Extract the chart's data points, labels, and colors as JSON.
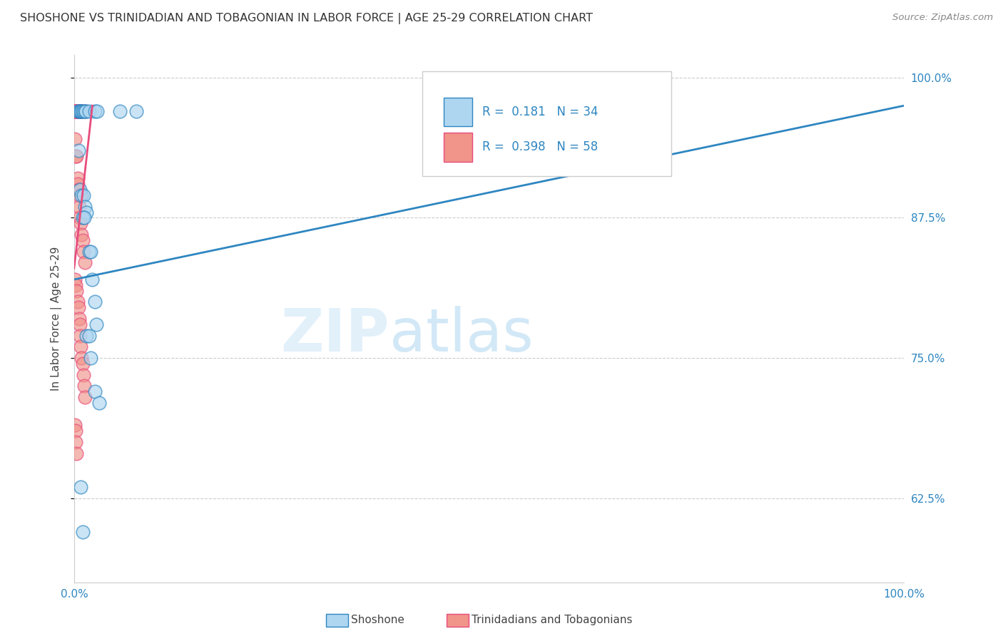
{
  "title": "SHOSHONE VS TRINIDADIAN AND TOBAGONIAN IN LABOR FORCE | AGE 25-29 CORRELATION CHART",
  "source": "Source: ZipAtlas.com",
  "ylabel_left": "In Labor Force | Age 25-29",
  "legend_label1": "Shoshone",
  "legend_label2": "Trinidadians and Tobagonians",
  "R1": "0.181",
  "N1": "34",
  "R2": "0.398",
  "N2": "58",
  "color_blue": "#aed6f1",
  "color_pink": "#f1948a",
  "color_blue_dark": "#2e86c1",
  "color_pink_dark": "#e74c7c",
  "color_text_blue": "#2e86c1",
  "shoshone_points": [
    [
      0.004,
      0.97
    ],
    [
      0.006,
      0.97
    ],
    [
      0.007,
      0.97
    ],
    [
      0.008,
      0.97
    ],
    [
      0.009,
      0.97
    ],
    [
      0.01,
      0.97
    ],
    [
      0.011,
      0.97
    ],
    [
      0.013,
      0.97
    ],
    [
      0.014,
      0.97
    ],
    [
      0.018,
      0.97
    ],
    [
      0.025,
      0.97
    ],
    [
      0.028,
      0.97
    ],
    [
      0.055,
      0.97
    ],
    [
      0.075,
      0.97
    ],
    [
      0.005,
      0.935
    ],
    [
      0.007,
      0.9
    ],
    [
      0.009,
      0.895
    ],
    [
      0.011,
      0.895
    ],
    [
      0.013,
      0.885
    ],
    [
      0.015,
      0.88
    ],
    [
      0.01,
      0.875
    ],
    [
      0.012,
      0.875
    ],
    [
      0.018,
      0.845
    ],
    [
      0.02,
      0.845
    ],
    [
      0.022,
      0.82
    ],
    [
      0.025,
      0.8
    ],
    [
      0.027,
      0.78
    ],
    [
      0.015,
      0.77
    ],
    [
      0.018,
      0.77
    ],
    [
      0.02,
      0.75
    ],
    [
      0.025,
      0.72
    ],
    [
      0.03,
      0.71
    ],
    [
      0.008,
      0.635
    ],
    [
      0.01,
      0.595
    ]
  ],
  "trinidadian_points": [
    [
      0.001,
      0.97
    ],
    [
      0.001,
      0.97
    ],
    [
      0.002,
      0.97
    ],
    [
      0.002,
      0.97
    ],
    [
      0.002,
      0.97
    ],
    [
      0.003,
      0.97
    ],
    [
      0.003,
      0.97
    ],
    [
      0.003,
      0.97
    ],
    [
      0.003,
      0.97
    ],
    [
      0.004,
      0.97
    ],
    [
      0.004,
      0.97
    ],
    [
      0.004,
      0.97
    ],
    [
      0.004,
      0.97
    ],
    [
      0.005,
      0.97
    ],
    [
      0.005,
      0.97
    ],
    [
      0.005,
      0.97
    ],
    [
      0.005,
      0.97
    ],
    [
      0.006,
      0.97
    ],
    [
      0.006,
      0.97
    ],
    [
      0.006,
      0.97
    ],
    [
      0.007,
      0.97
    ],
    [
      0.007,
      0.97
    ],
    [
      0.008,
      0.97
    ],
    [
      0.008,
      0.97
    ],
    [
      0.009,
      0.97
    ],
    [
      0.014,
      0.97
    ],
    [
      0.001,
      0.945
    ],
    [
      0.002,
      0.93
    ],
    [
      0.003,
      0.93
    ],
    [
      0.004,
      0.91
    ],
    [
      0.004,
      0.905
    ],
    [
      0.005,
      0.9
    ],
    [
      0.006,
      0.895
    ],
    [
      0.006,
      0.885
    ],
    [
      0.007,
      0.875
    ],
    [
      0.008,
      0.87
    ],
    [
      0.009,
      0.86
    ],
    [
      0.01,
      0.855
    ],
    [
      0.011,
      0.845
    ],
    [
      0.013,
      0.835
    ],
    [
      0.001,
      0.82
    ],
    [
      0.002,
      0.815
    ],
    [
      0.003,
      0.81
    ],
    [
      0.004,
      0.8
    ],
    [
      0.005,
      0.795
    ],
    [
      0.006,
      0.785
    ],
    [
      0.007,
      0.78
    ],
    [
      0.007,
      0.77
    ],
    [
      0.008,
      0.76
    ],
    [
      0.009,
      0.75
    ],
    [
      0.01,
      0.745
    ],
    [
      0.011,
      0.735
    ],
    [
      0.012,
      0.725
    ],
    [
      0.013,
      0.715
    ],
    [
      0.001,
      0.69
    ],
    [
      0.002,
      0.685
    ],
    [
      0.002,
      0.675
    ],
    [
      0.003,
      0.665
    ]
  ],
  "xlim": [
    0.0,
    1.0
  ],
  "ylim": [
    0.55,
    1.02
  ],
  "blue_line_x": [
    0.0,
    1.0
  ],
  "blue_line_y": [
    0.82,
    0.975
  ],
  "pink_line_x": [
    0.0,
    0.022
  ],
  "pink_line_y": [
    0.83,
    0.975
  ]
}
